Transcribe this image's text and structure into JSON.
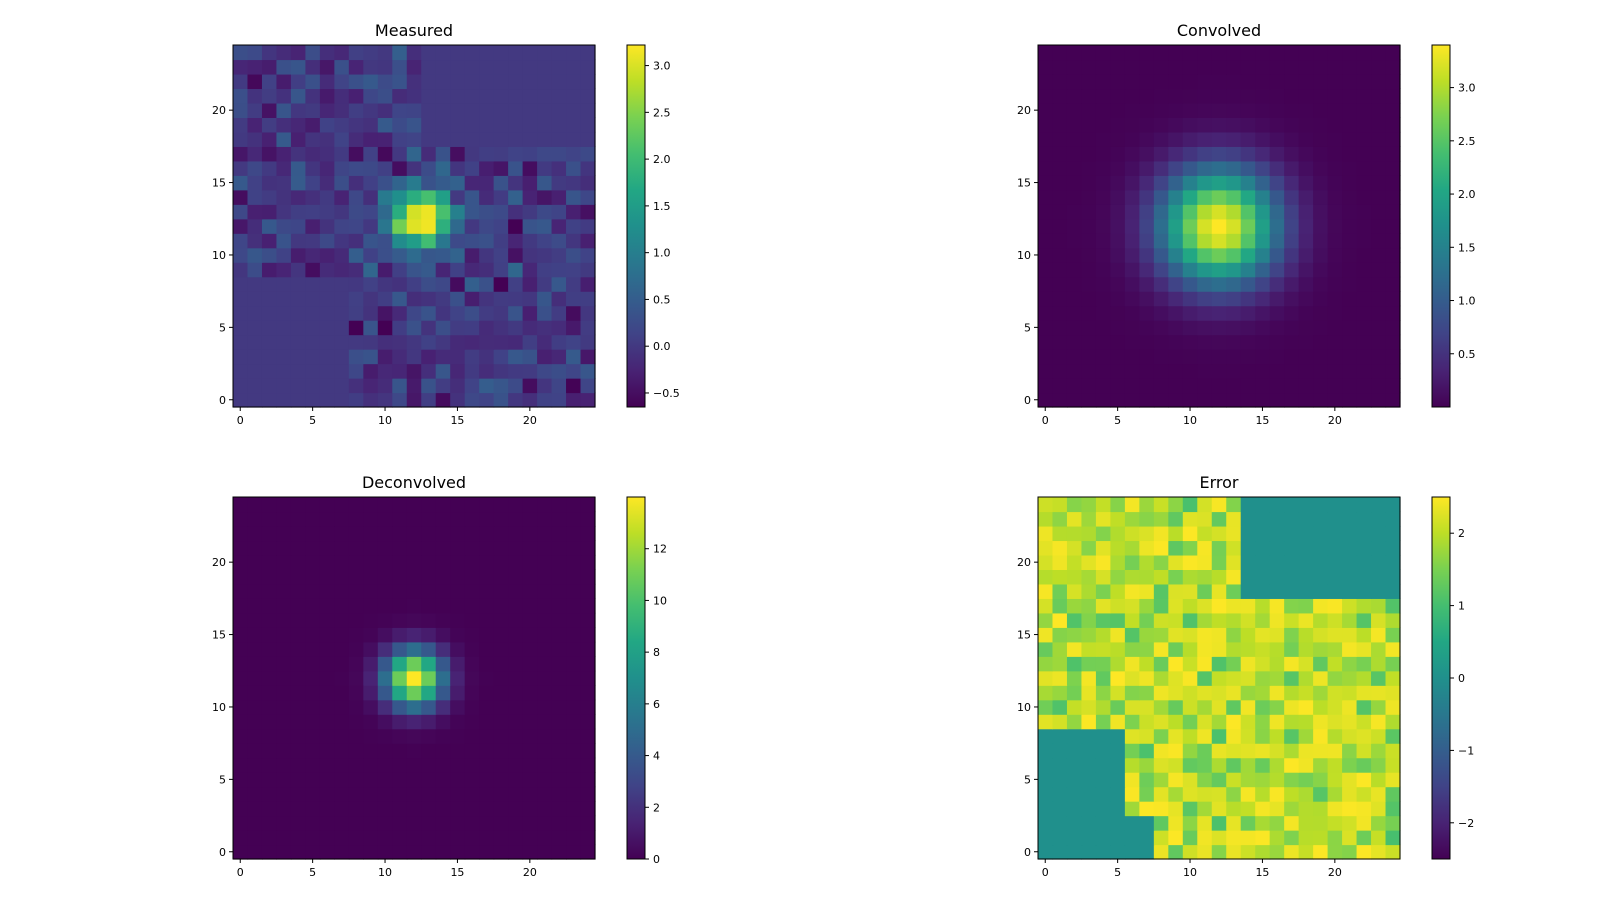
{
  "chart_data": [
    {
      "type": "heatmap",
      "title": "Measured",
      "xlabel": "",
      "ylabel": "",
      "grid_size": 25,
      "xlim": [
        -0.5,
        24.5
      ],
      "ylim": [
        -0.5,
        24.5
      ],
      "xticks": [
        0,
        5,
        10,
        15,
        20
      ],
      "yticks": [
        0,
        5,
        10,
        15,
        20
      ],
      "colormap": "viridis",
      "vmin": -0.65,
      "vmax": 3.22,
      "colorbar_ticks": [
        3.0,
        2.5,
        2.0,
        1.5,
        1.0,
        0.5,
        0.0,
        -0.5
      ],
      "colorbar_tick_labels": [
        "3.0",
        "2.5",
        "2.0",
        "1.5",
        "1.0",
        "0.5",
        "0.0",
        "−0.5"
      ],
      "peak": {
        "x": 12.5,
        "y": 12.5,
        "value": 3.22
      },
      "background_value": 0.0,
      "noise_std": 0.25,
      "constant_regions": [
        {
          "x_min": 13,
          "x_max": 24,
          "y_min": 18,
          "y_max": 24,
          "value": 0.0
        },
        {
          "x_min": 0,
          "x_max": 7,
          "y_min": 0,
          "y_max": 8,
          "value": 0.0
        }
      ]
    },
    {
      "type": "heatmap",
      "title": "Convolved",
      "xlabel": "",
      "ylabel": "",
      "grid_size": 25,
      "xlim": [
        -0.5,
        24.5
      ],
      "ylim": [
        -0.5,
        24.5
      ],
      "xticks": [
        0,
        5,
        10,
        15,
        20
      ],
      "yticks": [
        0,
        5,
        10,
        15,
        20
      ],
      "colormap": "viridis",
      "vmin": 0.0,
      "vmax": 3.4,
      "colorbar_ticks": [
        3.0,
        2.5,
        2.0,
        1.5,
        1.0,
        0.5
      ],
      "colorbar_tick_labels": [
        "3.0",
        "2.5",
        "2.0",
        "1.5",
        "1.0",
        "0.5"
      ],
      "peak": {
        "x": 12,
        "y": 12,
        "value": 3.4,
        "sigma": 2.8
      }
    },
    {
      "type": "heatmap",
      "title": "Deconvolved",
      "xlabel": "",
      "ylabel": "",
      "grid_size": 25,
      "xlim": [
        -0.5,
        24.5
      ],
      "ylim": [
        -0.5,
        24.5
      ],
      "xticks": [
        0,
        5,
        10,
        15,
        20
      ],
      "yticks": [
        0,
        5,
        10,
        15,
        20
      ],
      "colormap": "viridis",
      "vmin": 0.0,
      "vmax": 14.0,
      "colorbar_ticks": [
        12,
        10,
        8,
        6,
        4,
        2,
        0
      ],
      "colorbar_tick_labels": [
        "12",
        "10",
        "8",
        "6",
        "4",
        "2",
        "0"
      ],
      "peak": {
        "x": 12,
        "y": 12,
        "value": 14.0,
        "sigma": 1.4
      }
    },
    {
      "type": "heatmap",
      "title": "Error",
      "xlabel": "",
      "ylabel": "",
      "grid_size": 25,
      "xlim": [
        -0.5,
        24.5
      ],
      "ylim": [
        -0.5,
        24.5
      ],
      "xticks": [
        0,
        5,
        10,
        15,
        20
      ],
      "yticks": [
        0,
        5,
        10,
        15,
        20
      ],
      "colormap": "viridis",
      "vmin": -2.5,
      "vmax": 2.5,
      "colorbar_ticks": [
        2,
        1,
        0,
        -1,
        -2
      ],
      "colorbar_tick_labels": [
        "2",
        "1",
        "0",
        "−1",
        "−2"
      ],
      "typical_value_range": [
        1.0,
        2.5
      ],
      "constant_regions": [
        {
          "x_min": 14,
          "x_max": 24,
          "y_min": 18,
          "y_max": 24,
          "value": 0.0
        },
        {
          "x_min": 0,
          "x_max": 5,
          "y_min": 0,
          "y_max": 8,
          "value": 0.0
        },
        {
          "x_min": 6,
          "x_max": 7,
          "y_min": 0,
          "y_max": 2,
          "value": 0.0
        }
      ]
    }
  ]
}
